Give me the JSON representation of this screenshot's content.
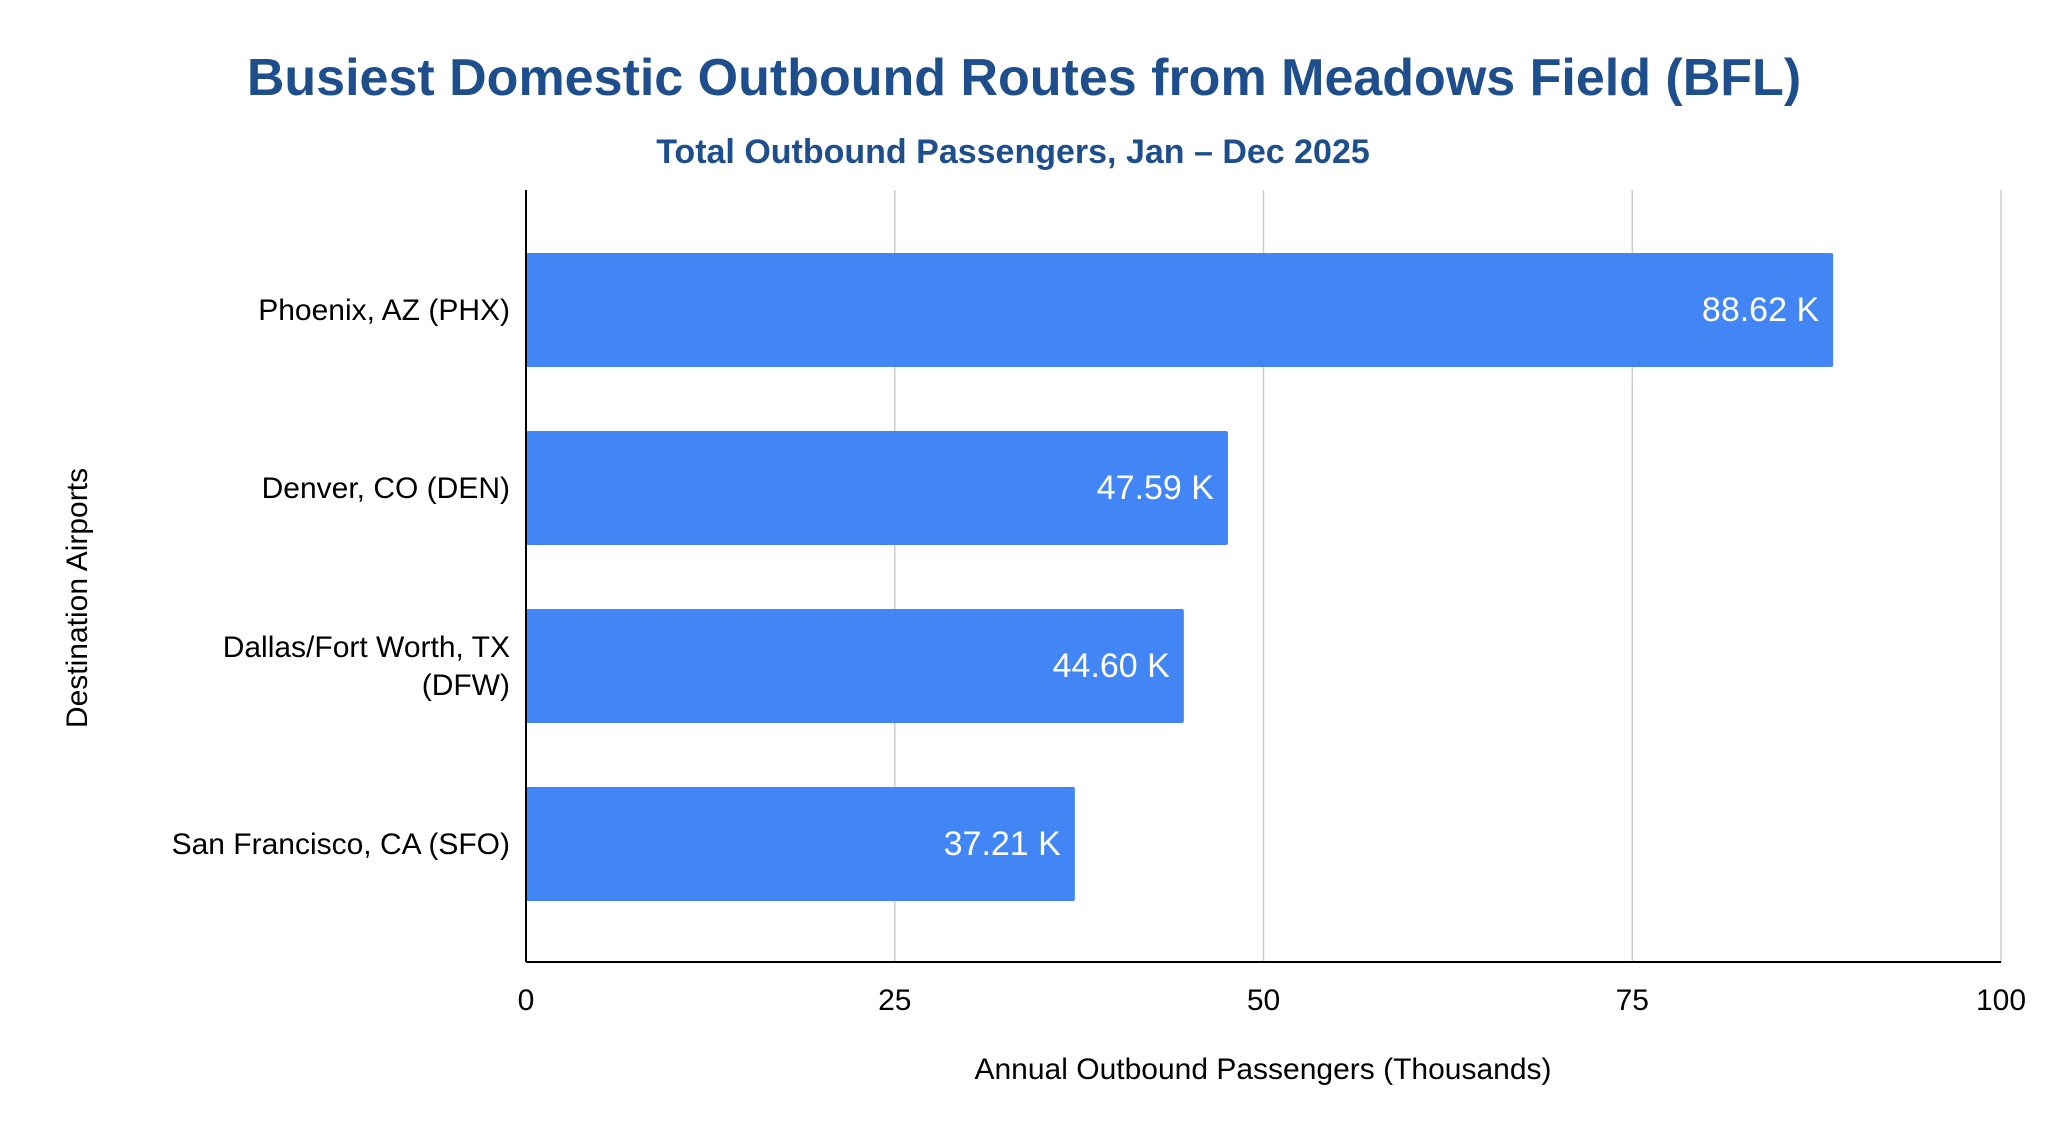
{
  "colors": {
    "title": "#1f4e8c",
    "bar": "#4285f4",
    "data_label": "#ffffff",
    "grid": "#cccccc",
    "axis": "#000000",
    "text": "#000000"
  },
  "chart_data": {
    "type": "bar",
    "orientation": "horizontal",
    "title": "Busiest Domestic Outbound Routes from Meadows Field (BFL)",
    "subtitle": "Total Outbound Passengers, Jan – Dec 2025",
    "xlabel": "Annual Outbound Passengers (Thousands)",
    "ylabel": "Destination Airports",
    "categories": [
      [
        "Phoenix, AZ (PHX)"
      ],
      [
        "Denver, CO (DEN)"
      ],
      [
        "Dallas/Fort Worth, TX",
        "(DFW)"
      ],
      [
        "San Francisco, CA (SFO)"
      ]
    ],
    "values": [
      88.62,
      47.59,
      44.6,
      37.21
    ],
    "data_labels": [
      "88.62 K",
      "47.59 K",
      "44.60 K",
      "37.21 K"
    ],
    "xlim": [
      0,
      100
    ],
    "xticks": [
      0,
      25,
      50,
      75,
      100
    ],
    "xtick_labels": [
      "0",
      "25",
      "50",
      "75",
      "100"
    ],
    "grid": "vertical",
    "legend": "none"
  }
}
